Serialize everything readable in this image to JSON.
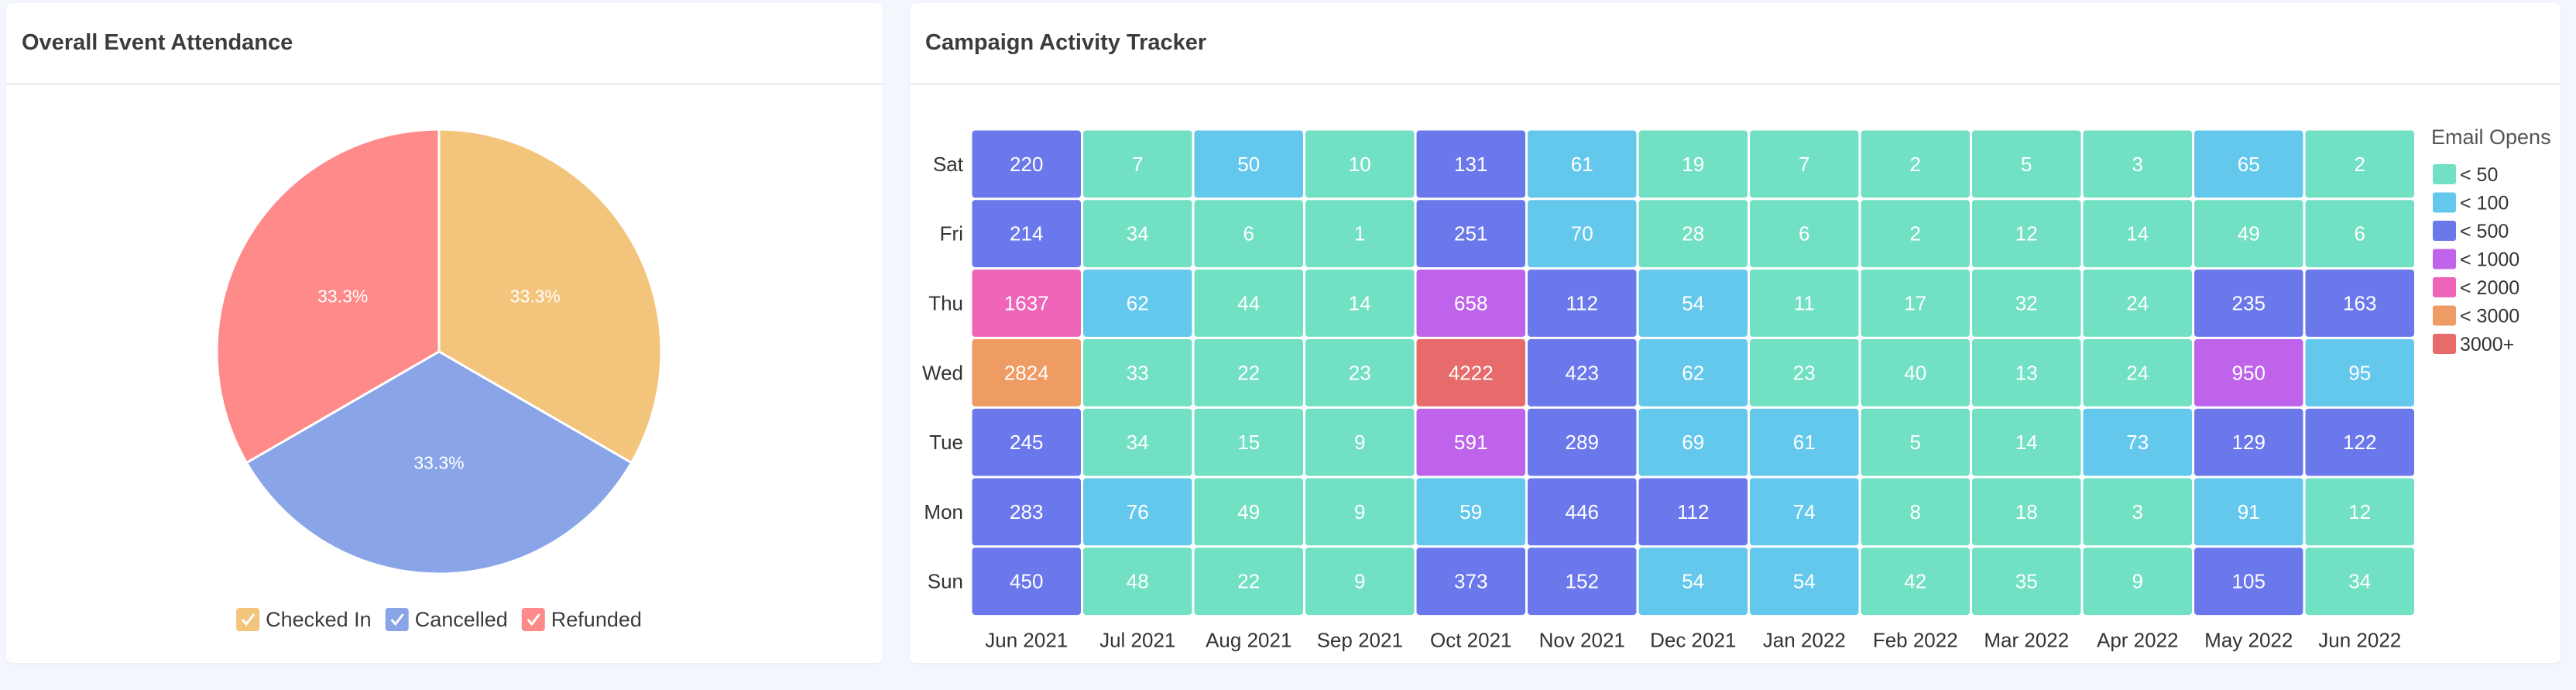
{
  "pie_card": {
    "title": "Overall Event Attendance"
  },
  "heat_card": {
    "title": "Campaign Activity Tracker"
  },
  "chart_data": [
    {
      "type": "pie",
      "title": "Overall Event Attendance",
      "legend_position": "bottom",
      "slices": [
        {
          "label": "Checked In",
          "value": 33.3,
          "display": "33.3%",
          "color": "#f3c47c"
        },
        {
          "label": "Cancelled",
          "value": 33.3,
          "display": "33.3%",
          "color": "#89a5e8"
        },
        {
          "label": "Refunded",
          "value": 33.3,
          "display": "33.3%",
          "color": "#ff8a8a"
        }
      ]
    },
    {
      "type": "heatmap",
      "title": "Campaign Activity Tracker",
      "legend_title": "Email Opens",
      "legend_position": "right",
      "x": [
        "Jun 2021",
        "Jul 2021",
        "Aug 2021",
        "Sep 2021",
        "Oct 2021",
        "Nov 2021",
        "Dec 2021",
        "Jan 2022",
        "Feb 2022",
        "Mar 2022",
        "Apr 2022",
        "May 2022",
        "Jun 2022"
      ],
      "y": [
        "Sat",
        "Fri",
        "Thu",
        "Wed",
        "Tue",
        "Mon",
        "Sun"
      ],
      "values": [
        [
          220,
          7,
          50,
          10,
          131,
          61,
          19,
          7,
          2,
          5,
          3,
          65,
          2
        ],
        [
          214,
          34,
          6,
          1,
          251,
          70,
          28,
          6,
          2,
          12,
          14,
          49,
          6
        ],
        [
          1637,
          62,
          44,
          14,
          658,
          112,
          54,
          11,
          17,
          32,
          24,
          235,
          163
        ],
        [
          2824,
          33,
          22,
          23,
          4222,
          423,
          62,
          23,
          40,
          13,
          24,
          950,
          95
        ],
        [
          245,
          34,
          15,
          9,
          591,
          289,
          69,
          61,
          5,
          14,
          73,
          129,
          122
        ],
        [
          283,
          76,
          49,
          9,
          59,
          446,
          112,
          74,
          8,
          18,
          3,
          91,
          12
        ],
        [
          450,
          48,
          22,
          9,
          373,
          152,
          54,
          54,
          42,
          35,
          9,
          105,
          34
        ]
      ],
      "color_scale": [
        {
          "label": "< 50",
          "max": 50,
          "color": "#72e0c3"
        },
        {
          "label": "< 100",
          "max": 100,
          "color": "#64c8ec"
        },
        {
          "label": "< 500",
          "max": 500,
          "color": "#6b78eb"
        },
        {
          "label": "< 1000",
          "max": 1000,
          "color": "#bf64ea"
        },
        {
          "label": "< 2000",
          "max": 2000,
          "color": "#ed64b9"
        },
        {
          "label": "< 3000",
          "max": 3000,
          "color": "#ee9c64"
        },
        {
          "label": "3000+",
          "max": null,
          "color": "#e76b6b"
        }
      ]
    }
  ]
}
